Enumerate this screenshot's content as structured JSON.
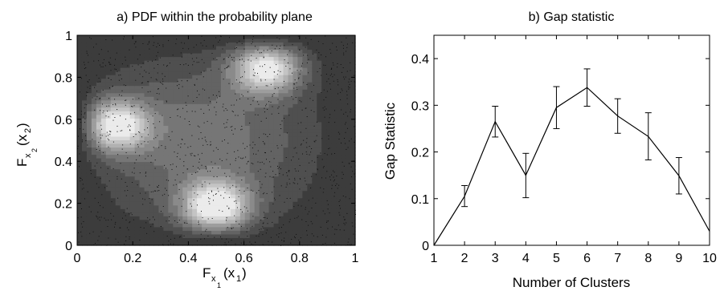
{
  "chart_data": [
    {
      "type": "contour",
      "title": "a) PDF within the probability plane",
      "xlabel": {
        "main": "F",
        "sub": "x",
        "subsub": "1",
        "arg": "(x",
        "argsub": "1",
        "close": ")"
      },
      "ylabel": {
        "main": "F",
        "sub": "x",
        "subsub": "2",
        "arg": "(x",
        "argsub": "2",
        "close": ")"
      },
      "xlim": [
        0,
        1
      ],
      "ylim": [
        0,
        1
      ],
      "xticks": [
        "0",
        "0.2",
        "0.4",
        "0.6",
        "0.8",
        "1"
      ],
      "yticks": [
        "0",
        "0.2",
        "0.4",
        "0.6",
        "0.8",
        "1"
      ],
      "density_peaks": [
        {
          "x": 0.13,
          "y": 0.57,
          "height": 1.0
        },
        {
          "x": 0.5,
          "y": 0.18,
          "height": 1.0
        },
        {
          "x": 0.68,
          "y": 0.85,
          "height": 0.95
        }
      ],
      "colormap": "grayscale",
      "scatter_overlay": true
    },
    {
      "type": "line",
      "title": "b) Gap statistic",
      "xlabel": "Number of Clusters",
      "ylabel": "Gap Statistic",
      "x": [
        1,
        2,
        3,
        4,
        5,
        6,
        7,
        8,
        9,
        10
      ],
      "y": [
        0.0,
        0.105,
        0.265,
        0.15,
        0.295,
        0.338,
        0.277,
        0.233,
        0.149,
        0.03
      ],
      "err_low": [
        null,
        0.083,
        0.232,
        0.102,
        0.25,
        0.298,
        0.24,
        0.183,
        0.11,
        null
      ],
      "err_high": [
        null,
        0.128,
        0.298,
        0.197,
        0.34,
        0.378,
        0.314,
        0.284,
        0.188,
        null
      ],
      "xlim": [
        1,
        10
      ],
      "ylim": [
        0,
        0.45
      ],
      "xticks": [
        "1",
        "2",
        "3",
        "4",
        "5",
        "6",
        "7",
        "8",
        "9",
        "10"
      ],
      "yticks": [
        "0",
        "0.1",
        "0.2",
        "0.3",
        "0.4"
      ],
      "error_bars": true
    }
  ]
}
